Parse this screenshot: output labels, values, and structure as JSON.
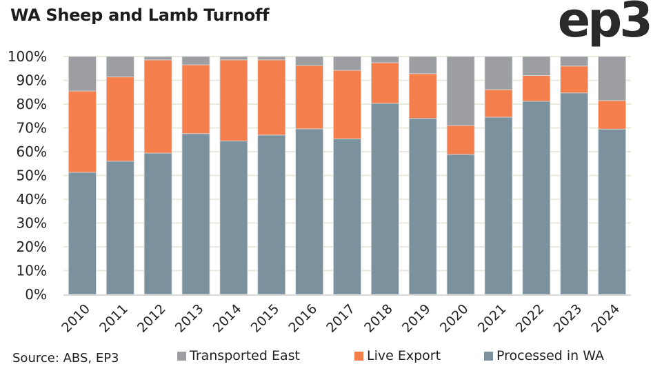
{
  "header": {
    "title": "WA Sheep and Lamb Turnoff",
    "logo": "ep3"
  },
  "footer": {
    "source": "Source: ABS, EP3"
  },
  "colors": {
    "transported_east": "#9d9ea2",
    "live_export": "#f57f4c",
    "processed_in_wa": "#7b919e",
    "gridline": "#e8e9df",
    "axis": "#d9d9d9"
  },
  "chart_data": {
    "type": "bar",
    "stacked": true,
    "title": "WA Sheep and Lamb Turnoff",
    "xlabel": "",
    "ylabel": "",
    "ylim": [
      0,
      100
    ],
    "y_ticks": [
      "0%",
      "10%",
      "20%",
      "30%",
      "40%",
      "50%",
      "60%",
      "70%",
      "80%",
      "90%",
      "100%"
    ],
    "grid": true,
    "legend_position": "bottom",
    "categories": [
      "2010",
      "2011",
      "2012",
      "2013",
      "2014",
      "2015",
      "2016",
      "2017",
      "2018",
      "2019",
      "2020",
      "2021",
      "2022",
      "2023",
      "2024"
    ],
    "series": [
      {
        "name": "Processed in WA",
        "color": "#7b919e",
        "values": [
          51.3,
          56.0,
          59.4,
          67.6,
          64.5,
          67.0,
          69.6,
          65.4,
          80.3,
          74.0,
          58.8,
          74.5,
          81.2,
          84.7,
          69.5
        ]
      },
      {
        "name": "Live Export",
        "color": "#f57f4c",
        "values": [
          34.2,
          35.4,
          39.2,
          28.9,
          34.1,
          31.6,
          26.6,
          28.8,
          17.1,
          18.8,
          12.2,
          11.6,
          10.8,
          11.3,
          12.0
        ]
      },
      {
        "name": "Transported East",
        "color": "#9d9ea2",
        "values": [
          14.5,
          8.6,
          1.4,
          3.5,
          1.4,
          1.4,
          3.8,
          5.8,
          2.6,
          7.2,
          29.0,
          13.9,
          8.0,
          4.0,
          18.5
        ]
      }
    ],
    "legend": [
      "Transported East",
      "Live Export",
      "Processed in WA"
    ]
  }
}
